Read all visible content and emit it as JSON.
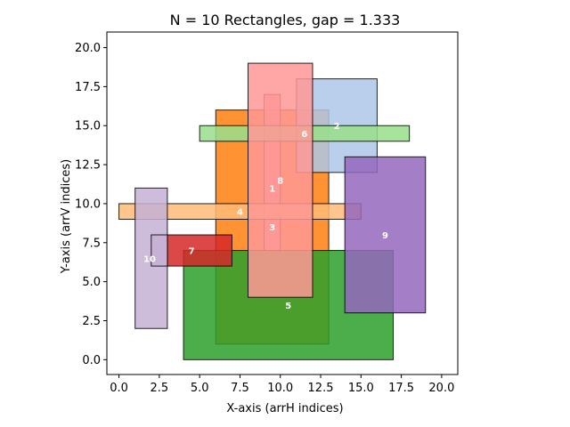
{
  "chart_data": {
    "type": "rectangles",
    "title": "N = 10 Rectangles, gap = 1.333",
    "xlabel": "X-axis (arrH indices)",
    "ylabel": "Y-axis (arrV indices)",
    "xlim": [
      -0.75,
      21
    ],
    "ylim": [
      -0.95,
      21
    ],
    "xticks": [
      "0.0",
      "2.5",
      "5.0",
      "7.5",
      "10.0",
      "12.5",
      "15.0",
      "17.5",
      "20.0"
    ],
    "yticks": [
      "0.0",
      "2.5",
      "5.0",
      "7.5",
      "10.0",
      "12.5",
      "15.0",
      "17.5",
      "20.0"
    ],
    "grid": false,
    "rectangles": [
      {
        "label": "1",
        "x0": 6,
        "y0": 1,
        "x1": 13,
        "y1": 16,
        "color": "#ff7f0e",
        "opacity": 0.85
      },
      {
        "label": "2",
        "x0": 11,
        "y0": 12,
        "x1": 16,
        "y1": 18,
        "color": "#aec7e8",
        "opacity": 0.85
      },
      {
        "label": "3",
        "x0": 9,
        "y0": 7,
        "x1": 10,
        "y1": 17,
        "color": "#ff9896",
        "opacity": 0.85
      },
      {
        "label": "4",
        "x0": 0,
        "y0": 9,
        "x1": 15,
        "y1": 10,
        "color": "#ffbb78",
        "opacity": 0.85
      },
      {
        "label": "5",
        "x0": 4,
        "y0": 0,
        "x1": 17,
        "y1": 7,
        "color": "#2ca02c",
        "opacity": 0.85
      },
      {
        "label": "6",
        "x0": 5,
        "y0": 14,
        "x1": 18,
        "y1": 15,
        "color": "#98df8a",
        "opacity": 0.85
      },
      {
        "label": "7",
        "x0": 3,
        "y0": 6,
        "x1": 7,
        "y1": 8,
        "color": "#d62728",
        "opacity": 0.85
      },
      {
        "label": "8",
        "x0": 8,
        "y0": 4,
        "x1": 12,
        "y1": 19,
        "color": "#ff9896",
        "opacity": 0.85
      },
      {
        "label": "9",
        "x0": 14,
        "y0": 3,
        "x1": 19,
        "y1": 13,
        "color": "#9467bd",
        "opacity": 0.85
      },
      {
        "label": "10",
        "x0": 1,
        "y0": 2,
        "x1": 3,
        "y1": 11,
        "color": "#c5b0d5",
        "opacity": 0.85
      }
    ],
    "overlay_rectangles": [
      {
        "x0": 2,
        "y0": 6,
        "x1": 3,
        "y1": 8,
        "color": "#c5b0d5",
        "opacity": 0.85
      }
    ],
    "labels": [
      {
        "text": "1",
        "x": 9.5,
        "y": 11.0
      },
      {
        "text": "2",
        "x": 13.5,
        "y": 15.0
      },
      {
        "text": "3",
        "x": 9.5,
        "y": 8.5
      },
      {
        "text": "4",
        "x": 7.5,
        "y": 9.5
      },
      {
        "text": "5",
        "x": 10.5,
        "y": 3.5
      },
      {
        "text": "6",
        "x": 11.5,
        "y": 14.5
      },
      {
        "text": "7",
        "x": 4.5,
        "y": 7.0
      },
      {
        "text": "8",
        "x": 10.0,
        "y": 11.5
      },
      {
        "text": "9",
        "x": 16.5,
        "y": 8.0
      },
      {
        "text": "10",
        "x": 1.9,
        "y": 6.5
      }
    ]
  }
}
